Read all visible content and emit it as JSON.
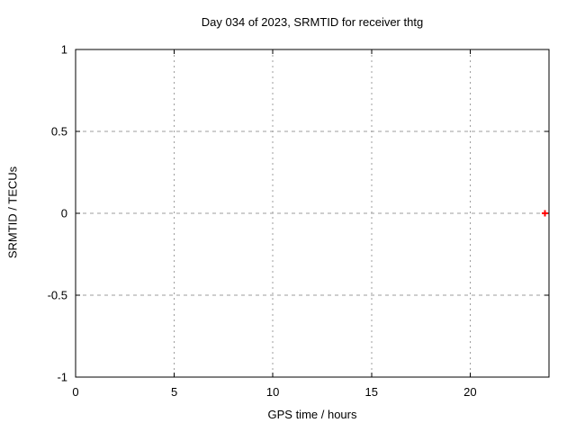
{
  "title": "Day 034 of 2023, SRMTID for receiver thtg",
  "chart_data": {
    "type": "scatter",
    "title": "Day 034 of 2023, SRMTID for receiver thtg",
    "xlabel": "GPS time / hours",
    "ylabel": "SRMTID / TECUs",
    "xlim": [
      0,
      24
    ],
    "ylim": [
      -1,
      1
    ],
    "xticks": [
      0,
      5,
      10,
      15,
      20
    ],
    "yticks": [
      -1,
      -0.5,
      0,
      0.5,
      1
    ],
    "grid": true,
    "legend": "none",
    "series": [
      {
        "name": "SRMTID",
        "marker": "plus",
        "color": "#ff0000",
        "points": [
          {
            "x": 23.8,
            "y": 0
          }
        ]
      }
    ],
    "colors": {
      "background": "#ffffff",
      "axis": "#000000",
      "grid": "#9e9e9e",
      "text": "#000000",
      "marker": "#ff0000"
    }
  }
}
